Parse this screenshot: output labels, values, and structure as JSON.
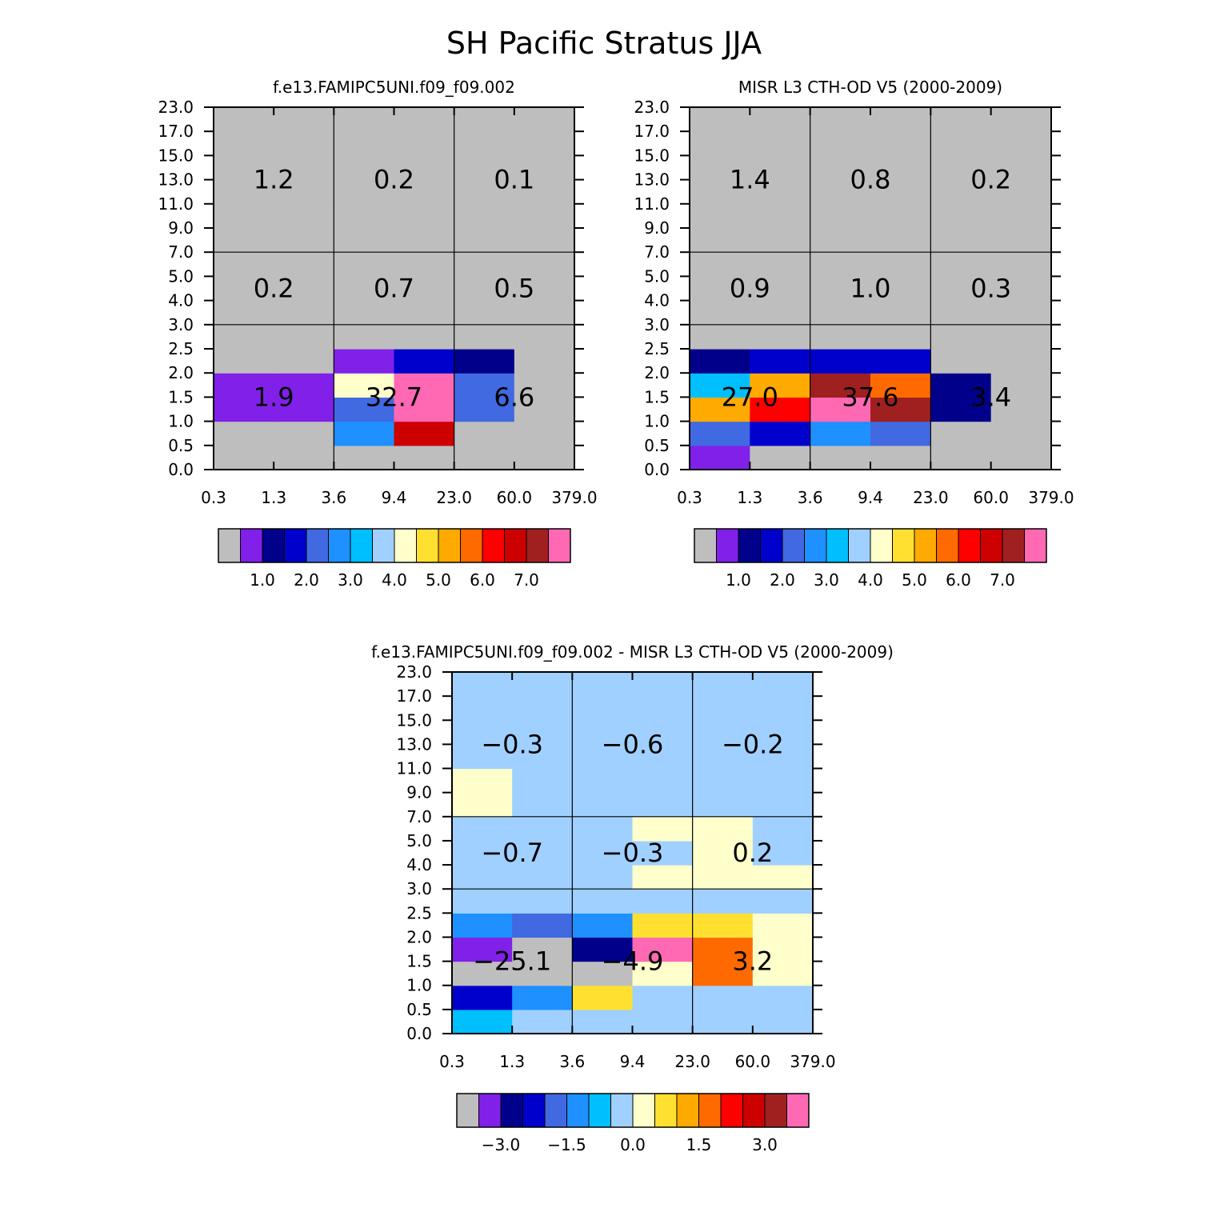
{
  "figure_title": "SH Pacific Stratus JJA",
  "chart_data": [
    {
      "type": "heatmap",
      "title": "f.e13.FAMIPC5UNI.f09_f09.002",
      "xlabel": "",
      "ylabel": "",
      "x_ticks": [
        "0.3",
        "1.3",
        "3.6",
        "9.4",
        "23.0",
        "60.0",
        "379.0"
      ],
      "y_ticks": [
        "0.0",
        "0.5",
        "1.0",
        "1.5",
        "2.0",
        "2.5",
        "3.0",
        "4.0",
        "5.0",
        "7.0",
        "9.0",
        "11.0",
        "13.0",
        "15.0",
        "17.0",
        "23.0"
      ],
      "cells": [
        [
          0,
          0,
          0,
          0,
          0,
          0
        ],
        [
          0,
          0,
          5,
          13,
          0,
          0
        ],
        [
          1,
          1,
          4,
          15,
          4,
          0
        ],
        [
          1,
          1,
          8,
          15,
          4,
          0
        ],
        [
          0,
          0,
          1,
          3,
          2,
          0
        ],
        [
          0,
          0,
          0,
          0,
          0,
          0
        ],
        [
          0,
          0,
          0,
          0,
          0,
          0
        ],
        [
          0,
          0,
          0,
          0,
          0,
          0
        ],
        [
          0,
          0,
          0,
          0,
          0,
          0
        ],
        [
          0,
          0,
          0,
          0,
          0,
          0
        ],
        [
          0,
          0,
          0,
          0,
          0,
          0
        ],
        [
          0,
          0,
          0,
          0,
          0,
          0
        ],
        [
          0,
          0,
          0,
          0,
          0,
          0
        ],
        [
          0,
          0,
          0,
          0,
          0,
          0
        ],
        [
          0,
          0,
          0,
          0,
          0,
          0
        ]
      ],
      "group_labels": [
        {
          "x": 0,
          "y": 0,
          "text": "1.9"
        },
        {
          "x": 1,
          "y": 0,
          "text": "32.7"
        },
        {
          "x": 2,
          "y": 0,
          "text": "6.6"
        },
        {
          "x": 0,
          "y": 1,
          "text": "0.2"
        },
        {
          "x": 1,
          "y": 1,
          "text": "0.7"
        },
        {
          "x": 2,
          "y": 1,
          "text": "0.5"
        },
        {
          "x": 0,
          "y": 2,
          "text": "1.2"
        },
        {
          "x": 1,
          "y": 2,
          "text": "0.2"
        },
        {
          "x": 2,
          "y": 2,
          "text": "0.1"
        }
      ],
      "colorbar_labels": [
        "1.0",
        "2.0",
        "3.0",
        "4.0",
        "5.0",
        "6.0",
        "7.0"
      ]
    },
    {
      "type": "heatmap",
      "title": "MISR L3 CTH-OD V5 (2000-2009)",
      "xlabel": "",
      "ylabel": "",
      "x_ticks": [
        "0.3",
        "1.3",
        "3.6",
        "9.4",
        "23.0",
        "60.0",
        "379.0"
      ],
      "y_ticks": [
        "0.0",
        "0.5",
        "1.0",
        "1.5",
        "2.0",
        "2.5",
        "3.0",
        "4.0",
        "5.0",
        "7.0",
        "9.0",
        "11.0",
        "13.0",
        "15.0",
        "17.0",
        "23.0"
      ],
      "cells": [
        [
          1,
          0,
          0,
          0,
          0,
          0
        ],
        [
          4,
          3,
          5,
          4,
          0,
          0
        ],
        [
          10,
          12,
          15,
          14,
          2,
          0
        ],
        [
          6,
          10,
          14,
          11,
          2,
          0
        ],
        [
          2,
          3,
          3,
          3,
          0,
          0
        ],
        [
          0,
          0,
          0,
          0,
          0,
          0
        ],
        [
          0,
          0,
          0,
          0,
          0,
          0
        ],
        [
          0,
          0,
          0,
          0,
          0,
          0
        ],
        [
          0,
          0,
          0,
          0,
          0,
          0
        ],
        [
          0,
          0,
          0,
          0,
          0,
          0
        ],
        [
          0,
          0,
          0,
          0,
          0,
          0
        ],
        [
          0,
          0,
          0,
          0,
          0,
          0
        ],
        [
          0,
          0,
          0,
          0,
          0,
          0
        ],
        [
          0,
          0,
          0,
          0,
          0,
          0
        ],
        [
          0,
          0,
          0,
          0,
          0,
          0
        ]
      ],
      "group_labels": [
        {
          "x": 0,
          "y": 0,
          "text": "27.0"
        },
        {
          "x": 1,
          "y": 0,
          "text": "37.6"
        },
        {
          "x": 2,
          "y": 0,
          "text": "3.4"
        },
        {
          "x": 0,
          "y": 1,
          "text": "0.9"
        },
        {
          "x": 1,
          "y": 1,
          "text": "1.0"
        },
        {
          "x": 2,
          "y": 1,
          "text": "0.3"
        },
        {
          "x": 0,
          "y": 2,
          "text": "1.4"
        },
        {
          "x": 1,
          "y": 2,
          "text": "0.8"
        },
        {
          "x": 2,
          "y": 2,
          "text": "0.2"
        }
      ],
      "colorbar_labels": [
        "1.0",
        "2.0",
        "3.0",
        "4.0",
        "5.0",
        "6.0",
        "7.0"
      ]
    },
    {
      "type": "heatmap",
      "title": "f.e13.FAMIPC5UNI.f09_f09.002 - MISR L3 CTH-OD V5 (2000-2009)",
      "xlabel": "",
      "ylabel": "",
      "x_ticks": [
        "0.3",
        "1.3",
        "3.6",
        "9.4",
        "23.0",
        "60.0",
        "379.0"
      ],
      "y_ticks": [
        "0.0",
        "0.5",
        "1.0",
        "1.5",
        "2.0",
        "2.5",
        "3.0",
        "4.0",
        "5.0",
        "7.0",
        "9.0",
        "11.0",
        "13.0",
        "15.0",
        "17.0",
        "23.0"
      ],
      "cells": [
        [
          6,
          7,
          7,
          7,
          7,
          7
        ],
        [
          3,
          5,
          9,
          7,
          7,
          7
        ],
        [
          0,
          0,
          0,
          8,
          11,
          8
        ],
        [
          1,
          0,
          2,
          15,
          11,
          8
        ],
        [
          5,
          4,
          5,
          9,
          9,
          8
        ],
        [
          7,
          7,
          7,
          7,
          7,
          7
        ],
        [
          7,
          7,
          7,
          8,
          8,
          8
        ],
        [
          7,
          7,
          7,
          7,
          8,
          7
        ],
        [
          7,
          7,
          7,
          8,
          8,
          7
        ],
        [
          8,
          7,
          7,
          7,
          7,
          7
        ],
        [
          8,
          7,
          7,
          7,
          7,
          7
        ],
        [
          7,
          7,
          7,
          7,
          7,
          7
        ],
        [
          7,
          7,
          7,
          7,
          7,
          7
        ],
        [
          7,
          7,
          7,
          7,
          7,
          7
        ],
        [
          7,
          7,
          7,
          7,
          7,
          7
        ]
      ],
      "group_labels": [
        {
          "x": 0,
          "y": 0,
          "text": "−25.1"
        },
        {
          "x": 1,
          "y": 0,
          "text": "−4.9"
        },
        {
          "x": 2,
          "y": 0,
          "text": "3.2"
        },
        {
          "x": 0,
          "y": 1,
          "text": "−0.7"
        },
        {
          "x": 1,
          "y": 1,
          "text": "−0.3"
        },
        {
          "x": 2,
          "y": 1,
          "text": "0.2"
        },
        {
          "x": 0,
          "y": 2,
          "text": "−0.3"
        },
        {
          "x": 1,
          "y": 2,
          "text": "−0.6"
        },
        {
          "x": 2,
          "y": 2,
          "text": "−0.2"
        }
      ],
      "colorbar_labels": [
        "−3.0",
        "−1.5",
        "0.0",
        "1.5",
        "3.0"
      ]
    }
  ],
  "palette": [
    "#bebebe",
    "#8020e8",
    "#00008b",
    "#0000cd",
    "#4169e1",
    "#1e90ff",
    "#00bfff",
    "#a0d0ff",
    "#ffffcc",
    "#ffe030",
    "#ffaa00",
    "#ff6a00",
    "#ff0000",
    "#cd0000",
    "#a02020",
    "#ff69b4"
  ]
}
